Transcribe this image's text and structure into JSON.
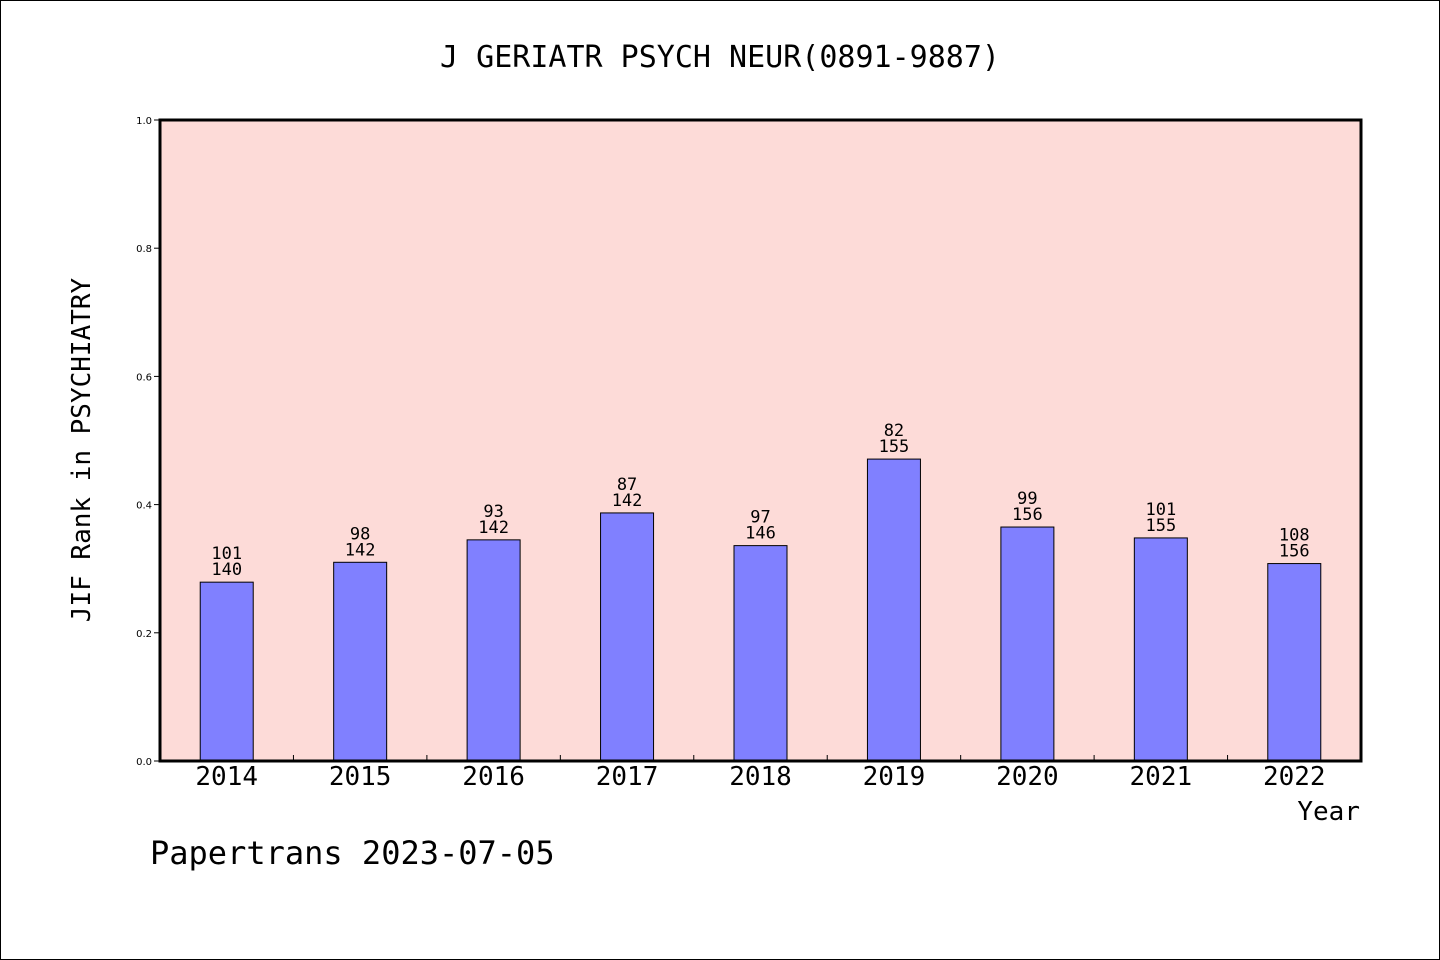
{
  "chart_data": {
    "type": "bar",
    "title": "J GERIATR PSYCH NEUR(0891-9887)",
    "xlabel": "Year",
    "ylabel": "JIF Rank in PSYCHIATRY",
    "ylim": [
      0,
      1.0
    ],
    "yticks": [
      "0.0",
      "0.2",
      "0.4",
      "0.6",
      "0.8",
      "1.0"
    ],
    "categories": [
      "2014",
      "2015",
      "2016",
      "2017",
      "2018",
      "2019",
      "2020",
      "2021",
      "2022"
    ],
    "values": [
      0.279,
      0.31,
      0.345,
      0.387,
      0.336,
      0.471,
      0.365,
      0.348,
      0.308
    ],
    "rank_labels": [
      "101",
      "98",
      "93",
      "87",
      "97",
      "82",
      "99",
      "101",
      "108"
    ],
    "total_labels": [
      "140",
      "142",
      "142",
      "142",
      "146",
      "155",
      "156",
      "155",
      "156"
    ],
    "grid": false,
    "colors": {
      "plot_background": "#fddbd8",
      "bar_fill": "#8080ff",
      "bar_stroke": "#000000"
    }
  },
  "footer": "Papertrans 2023-07-05"
}
